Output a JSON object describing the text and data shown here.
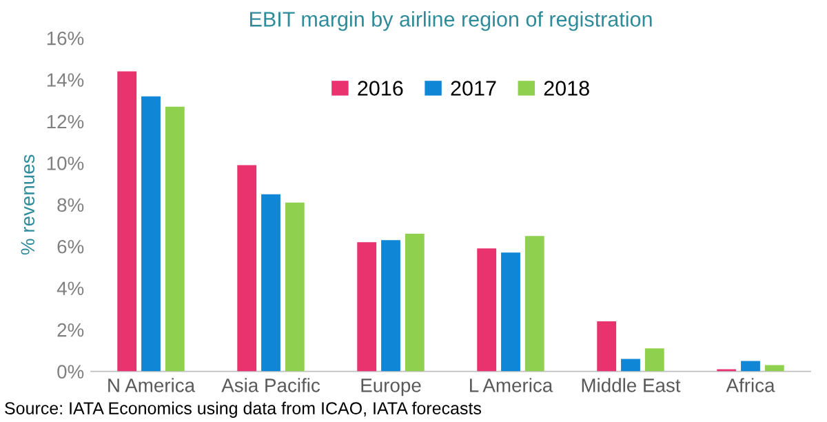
{
  "chart_data": {
    "type": "bar",
    "title": "EBIT margin by airline region of registration",
    "ylabel": "% revenues",
    "categories": [
      "N America",
      "Asia Pacific",
      "Europe",
      "L America",
      "Middle East",
      "Africa"
    ],
    "series": [
      {
        "name": "2016",
        "color": "#e8336e",
        "values": [
          14.4,
          9.9,
          6.2,
          5.9,
          2.4,
          0.1
        ]
      },
      {
        "name": "2017",
        "color": "#0f87d6",
        "values": [
          13.2,
          8.5,
          6.3,
          5.7,
          0.6,
          0.5
        ]
      },
      {
        "name": "2018",
        "color": "#8fd14f",
        "values": [
          12.7,
          8.1,
          6.6,
          6.5,
          1.1,
          0.3
        ]
      }
    ],
    "ylim": [
      0,
      16
    ],
    "yticks": [
      {
        "value": 0,
        "label": "0%"
      },
      {
        "value": 2,
        "label": "2%"
      },
      {
        "value": 4,
        "label": "4%"
      },
      {
        "value": 6,
        "label": "6%"
      },
      {
        "value": 8,
        "label": "8%"
      },
      {
        "value": 10,
        "label": "10%"
      },
      {
        "value": 12,
        "label": "12%"
      },
      {
        "value": 14,
        "label": "14%"
      },
      {
        "value": 16,
        "label": "16%"
      }
    ],
    "grid": false,
    "legend": "top right",
    "annotations": [
      "Source: IATA Economics using data from ICAO, IATA forecasts"
    ]
  }
}
